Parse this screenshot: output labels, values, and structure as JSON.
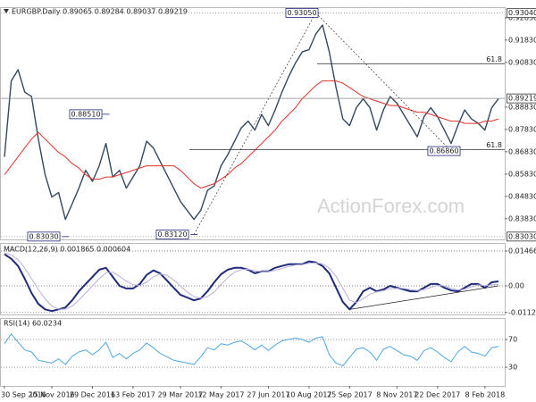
{
  "chart_data": [
    {
      "type": "line",
      "title": "EURGBP.Daily 0.89065 0.89284 0.89037 0.89219",
      "watermark": "ActionForex.com",
      "categories": [
        "30 Sep 2016",
        null,
        null,
        null,
        null,
        null,
        null,
        "15 Nov 2016",
        null,
        null,
        null,
        null,
        null,
        "29 Dec 2016",
        null,
        null,
        null,
        null,
        null,
        "13 Feb 2017",
        null,
        null,
        null,
        null,
        null,
        null,
        "29 Mar 2017",
        null,
        null,
        null,
        null,
        null,
        "12 May 2017",
        null,
        null,
        null,
        null,
        null,
        null,
        "27 Jun 2017",
        null,
        null,
        null,
        null,
        null,
        "10 Aug 2017",
        null,
        null,
        null,
        null,
        null,
        "25 Sep 2017",
        null,
        null,
        null,
        null,
        null,
        null,
        "8 Nov 2017",
        null,
        null,
        null,
        null,
        null,
        "22 Dec 2017",
        null,
        null,
        null,
        null,
        null,
        null,
        "8 Feb 2018",
        null,
        null
      ],
      "series": [
        {
          "color": "#34495e",
          "values": [
            0.866,
            0.9,
            0.905,
            0.895,
            0.893,
            0.874,
            0.858,
            0.848,
            0.85,
            0.838,
            0.845,
            0.852,
            0.86,
            0.855,
            0.862,
            0.872,
            0.857,
            0.86,
            0.852,
            0.857,
            0.862,
            0.873,
            0.87,
            0.864,
            0.858,
            0.852,
            0.846,
            0.842,
            0.838,
            0.842,
            0.851,
            0.853,
            0.862,
            0.867,
            0.873,
            0.879,
            0.882,
            0.878,
            0.885,
            0.88,
            0.887,
            0.895,
            0.902,
            0.908,
            0.913,
            0.914,
            0.921,
            0.925,
            0.913,
            0.897,
            0.883,
            0.88,
            0.888,
            0.892,
            0.888,
            0.878,
            0.887,
            0.893,
            0.89,
            0.885,
            0.88,
            0.875,
            0.884,
            0.888,
            0.884,
            0.878,
            0.872,
            0.88,
            0.887,
            0.883,
            0.881,
            0.878,
            0.888,
            0.892
          ]
        },
        {
          "color": "#e3342f",
          "values": [
            0.858,
            0.862,
            0.866,
            0.87,
            0.874,
            0.877,
            0.874,
            0.871,
            0.868,
            0.866,
            0.863,
            0.861,
            0.858,
            0.856,
            0.856,
            0.857,
            0.857,
            0.858,
            0.859,
            0.86,
            0.861,
            0.862,
            0.862,
            0.862,
            0.862,
            0.862,
            0.86,
            0.857,
            0.854,
            0.852,
            0.853,
            0.854,
            0.856,
            0.858,
            0.861,
            0.863,
            0.866,
            0.869,
            0.872,
            0.875,
            0.878,
            0.882,
            0.885,
            0.888,
            0.892,
            0.895,
            0.898,
            0.9,
            0.9,
            0.9,
            0.899,
            0.897,
            0.895,
            0.893,
            0.892,
            0.891,
            0.89,
            0.889,
            0.889,
            0.888,
            0.887,
            0.886,
            0.886,
            0.885,
            0.884,
            0.883,
            0.882,
            0.882,
            0.881,
            0.881,
            0.881,
            0.882,
            0.882,
            0.883
          ]
        }
      ],
      "ylim": [
        0.82903,
        0.93306
      ],
      "yticks": [
        {
          "value": 0.9283,
          "label": "0.92830"
        },
        {
          "value": 0.9183,
          "label": "0.91830"
        },
        {
          "value": 0.9083,
          "label": "0.90830"
        },
        {
          "value": 0.8883,
          "label": "0.88830"
        },
        {
          "value": 0.8783,
          "label": "0.87830"
        },
        {
          "value": 0.8683,
          "label": "0.86830"
        },
        {
          "value": 0.8583,
          "label": "0.85830"
        },
        {
          "value": 0.8483,
          "label": "0.84830"
        },
        {
          "value": 0.8383,
          "label": "0.83830"
        }
      ],
      "grid": false,
      "markers": [
        {
          "value": 0.9304,
          "label": "0.93040"
        },
        {
          "value": 0.89219,
          "label": "0.89219"
        },
        {
          "value": 0.8303,
          "label": "0.83030"
        }
      ],
      "annotations": [
        {
          "value": 0.9305,
          "label": "0.93050"
        },
        {
          "value": 0.8851,
          "label": "0.88510"
        },
        {
          "value": 0.8686,
          "label": "0.86860"
        },
        {
          "value": 0.8303,
          "label": "0.83030"
        },
        {
          "value": 0.8312,
          "label": "0.83120"
        }
      ],
      "levels": [
        {
          "value": 0.9077,
          "label": "61.8"
        },
        {
          "value": 0.8693,
          "label": "61.8"
        }
      ]
    },
    {
      "type": "line",
      "title": "MACD(12,26,9) 0.001865 0.000604",
      "series": [
        {
          "color": "#1f2a7a",
          "values": [
            0.0133,
            0.0114,
            0.0084,
            0.003,
            -0.003,
            -0.0076,
            -0.0099,
            -0.0106,
            -0.0099,
            -0.0091,
            -0.0061,
            -0.0023,
            0.0008,
            0.0038,
            0.0068,
            0.0076,
            0.0038,
            0.0,
            -0.0011,
            -0.0011,
            0.0008,
            0.0046,
            0.0065,
            0.0053,
            0.0023,
            -0.0008,
            -0.0038,
            -0.0049,
            -0.0061,
            -0.0053,
            -0.0023,
            0.0015,
            0.0049,
            0.0068,
            0.0076,
            0.0076,
            0.0068,
            0.0053,
            0.0061,
            0.0061,
            0.0076,
            0.0084,
            0.0091,
            0.0091,
            0.0091,
            0.0103,
            0.0099,
            0.0084,
            0.0053,
            -0.0008,
            -0.0068,
            -0.0099,
            -0.0068,
            -0.0023,
            -0.0008,
            -0.0023,
            -0.0015,
            0.0,
            -0.0008,
            -0.0015,
            -0.0023,
            -0.0023,
            -0.0008,
            0.0008,
            0.0008,
            -0.0008,
            -0.0019,
            -0.0023,
            -0.0008,
            0.0008,
            0.0008,
            -0.0008,
            0.0015,
            0.0019
          ]
        },
        {
          "color": "#b9aedb",
          "values": [
            0.014,
            0.013,
            0.011,
            0.0075,
            0.003,
            -0.0015,
            -0.0055,
            -0.0085,
            -0.0098,
            -0.0098,
            -0.0085,
            -0.006,
            -0.003,
            0.0,
            0.003,
            0.0055,
            0.0058,
            0.004,
            0.002,
            0.0005,
            0.0002,
            0.0015,
            0.0038,
            0.005,
            0.0045,
            0.0025,
            0.0,
            -0.0025,
            -0.0045,
            -0.0052,
            -0.0045,
            -0.0025,
            0.0005,
            0.0035,
            0.0058,
            0.0068,
            0.007,
            0.0063,
            0.006,
            0.006,
            0.0065,
            0.0073,
            0.0082,
            0.0088,
            0.009,
            0.0095,
            0.0097,
            0.0093,
            0.0075,
            0.004,
            -0.001,
            -0.006,
            -0.007,
            -0.0055,
            -0.0035,
            -0.0025,
            -0.002,
            -0.0012,
            -0.001,
            -0.0011,
            -0.0016,
            -0.002,
            -0.0016,
            -0.0006,
            0.0002,
            0.0,
            -0.001,
            -0.0017,
            -0.0014,
            -0.0004,
            0.0004,
            0.0001,
            0.0004,
            0.0006
          ]
        }
      ],
      "ylim": [
        -0.01203,
        0.01805
      ],
      "yticks": [
        0.014661,
        {
          "value": 0,
          "label": "0.00"
        },
        -0.011202
      ],
      "grid": true
    },
    {
      "type": "line",
      "title": "RSI(14) 60.0234",
      "series": [
        {
          "color": "#4ea6e0",
          "values": [
            64,
            78,
            66,
            55,
            52,
            40,
            38,
            36,
            42,
            34,
            46,
            52,
            55,
            48,
            55,
            66,
            44,
            50,
            42,
            50,
            55,
            65,
            58,
            50,
            45,
            40,
            38,
            36,
            34,
            45,
            58,
            55,
            64,
            62,
            66,
            68,
            62,
            55,
            62,
            54,
            62,
            68,
            70,
            72,
            70,
            66,
            72,
            74,
            48,
            36,
            32,
            44,
            56,
            58,
            52,
            40,
            56,
            60,
            54,
            48,
            46,
            40,
            54,
            58,
            52,
            44,
            38,
            52,
            60,
            52,
            50,
            46,
            58,
            60
          ]
        }
      ],
      "ylim": [
        3,
        101
      ],
      "yticks": [
        70,
        30
      ],
      "grid": true
    }
  ]
}
